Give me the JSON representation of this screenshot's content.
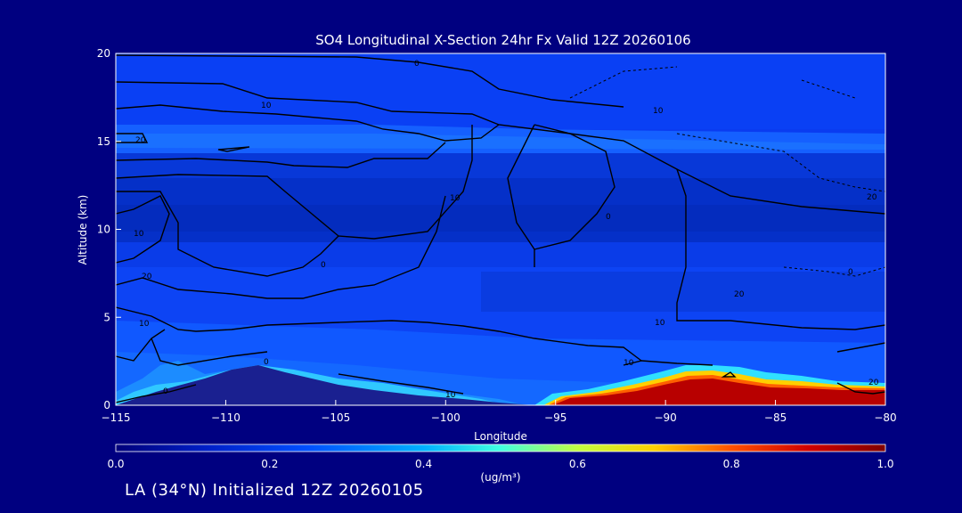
{
  "chart_data": {
    "type": "heatmap",
    "title": "SO4 Longitudinal X-Section 24hr  Fx Valid 12Z 20260106",
    "xlabel": "Longitude",
    "ylabel": "Altitude (km)",
    "xlim": [
      -115,
      -80
    ],
    "ylim": [
      0,
      20
    ],
    "x_ticks": [
      "-115",
      "-110",
      "-105",
      "-100",
      "-95",
      "-90",
      "-85",
      "-80"
    ],
    "y_ticks": [
      "0",
      "5",
      "10",
      "15",
      "20"
    ],
    "colorbar": {
      "label": "(ug/m³)",
      "range": [
        0.0,
        1.0
      ],
      "tick_labels": [
        "0.0",
        "0.2",
        "0.4",
        "0.6",
        "0.8",
        "1.0"
      ],
      "colors": [
        "#00007a",
        "#0030e8",
        "#0a8cff",
        "#00e4ff",
        "#a0ff60",
        "#ffe000",
        "#ff6000",
        "#d01000",
        "#7a0000"
      ]
    },
    "contour_labels": [
      "0",
      "10",
      "20",
      "10",
      "20",
      "10",
      "10",
      "0",
      "10",
      "20",
      "0",
      "0",
      "0",
      "10",
      "10",
      "20",
      "10",
      "20",
      "0"
    ],
    "regions": [
      {
        "name": "high-concentration surface layer",
        "lon_range": [
          -96,
          -80
        ],
        "alt_range": [
          0,
          1.5
        ],
        "value": 1.0
      },
      {
        "name": "upper-tropospheric minimum",
        "lon_range": [
          -115,
          -80
        ],
        "alt_range": [
          8.5,
          13
        ],
        "value": 0.05
      }
    ],
    "terrain_peak": {
      "lon": -108.5,
      "alt": 2.1
    }
  },
  "caption": "LA (34°N) Initialized 12Z 20260105"
}
